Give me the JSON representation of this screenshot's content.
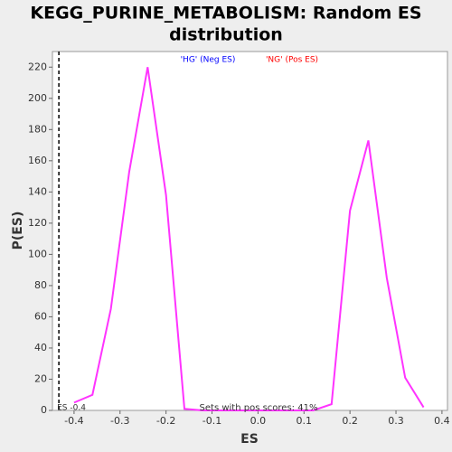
{
  "chart_data": {
    "type": "line",
    "title_lines": [
      "KEGG_PURINE_METABOLISM: Random ES",
      "distribution"
    ],
    "x_label": "ES",
    "y_label": "P(ES)",
    "x": [
      -0.4,
      -0.36,
      -0.32,
      -0.28,
      -0.24,
      -0.2,
      -0.16,
      -0.12,
      -0.08,
      -0.04,
      0,
      0.04,
      0.08,
      0.12,
      0.16,
      0.2,
      0.24,
      0.28,
      0.32,
      0.36
    ],
    "series": [
      {
        "name": "Random ES",
        "color": "#ff33ff",
        "values": [
          5,
          10,
          65,
          153,
          220,
          138,
          1,
          0,
          0,
          0,
          0,
          0,
          0,
          0,
          4,
          128,
          173,
          85,
          21,
          2
        ]
      }
    ],
    "xlim": [
      -0.447,
      0.412
    ],
    "ylim": [
      0,
      230
    ],
    "xticks": [
      -0.4,
      -0.3,
      -0.2,
      -0.1,
      {
        "value": 0,
        "label": "0.0"
      },
      0.1,
      0.2,
      0.3,
      0.4
    ],
    "yticks": [
      0,
      20,
      40,
      60,
      80,
      100,
      120,
      140,
      160,
      180,
      200,
      220
    ],
    "grid": false,
    "es_line": {
      "value": -0.433,
      "label": "ES -0.4"
    },
    "annotations": [
      {
        "text": "'HG' (Neg ES)",
        "color": "#0000ff"
      },
      {
        "text": "'NG' (Pos ES)",
        "color": "#ff0000"
      }
    ],
    "footnote": "Sets with pos scores: 41%"
  }
}
